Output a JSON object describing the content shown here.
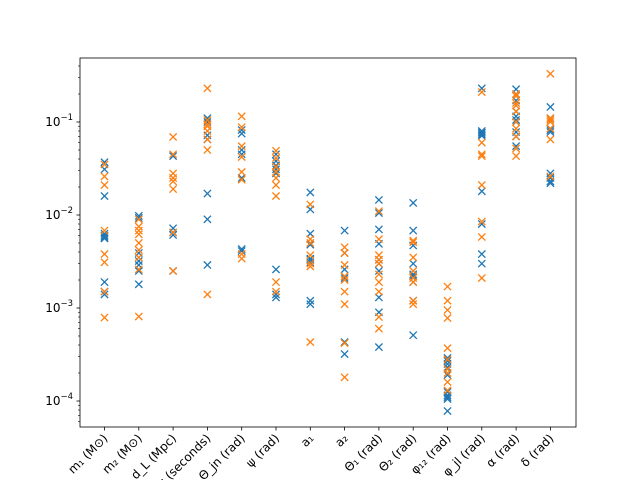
{
  "chart_data": {
    "type": "scatter",
    "title": "",
    "xlabel": "",
    "ylabel": "",
    "yscale": "log",
    "ylim": [
      5e-05,
      0.5
    ],
    "grid": false,
    "legend": "none",
    "categories": [
      "$m_1$ (M$_\\odot$)",
      "$m_2$ (M$_\\odot$)",
      "$d_L$ (Mpc)",
      "$t_c$ (seconds)",
      "$\\Theta_{jn}$ (rad)",
      "$\\psi$ (rad)",
      "$a_1$",
      "$a_2$",
      "$\\Theta_1$ (rad)",
      "$\\Theta_2$ (rad)",
      "$\\phi_{12}$ (rad)",
      "$\\phi_{jl}$ (rad)",
      "$\\alpha$ (rad)",
      "$\\delta$ (rad)"
    ],
    "category_labels_display": [
      "m₁ (M⊙)",
      "m₂ (M⊙)",
      "d_L (Mpc)",
      "t_c (seconds)",
      "Θ_jn (rad)",
      "ψ (rad)",
      "a₁",
      "a₂",
      "Θ₁ (rad)",
      "Θ₂ (rad)",
      "φ₁₂ (rad)",
      "φ_jl (rad)",
      "α (rad)",
      "δ (rad)"
    ],
    "y_ticks": [
      {
        "value": 0.0001,
        "mantissa": "10",
        "exp": "−4"
      },
      {
        "value": 0.001,
        "mantissa": "10",
        "exp": "−3"
      },
      {
        "value": 0.01,
        "mantissa": "10",
        "exp": "−2"
      },
      {
        "value": 0.1,
        "mantissa": "10",
        "exp": "−1"
      }
    ],
    "series": [
      {
        "color": "#1f77b4",
        "values": [
          [
            0.037,
            0.031,
            0.016,
            0.0063,
            0.006,
            0.0058,
            0.0056,
            0.0019,
            0.0015,
            0.0014
          ],
          [
            0.0098,
            0.0093,
            0.0039,
            0.0032,
            0.0029,
            0.0025,
            0.0018
          ],
          [
            0.043,
            0.0072,
            0.0065,
            0.0061,
            0.0025
          ],
          [
            0.11,
            0.1,
            0.072,
            0.065,
            0.017,
            0.009,
            0.0029
          ],
          [
            0.082,
            0.075,
            0.05,
            0.045,
            0.025,
            0.0043,
            0.0041
          ],
          [
            0.045,
            0.038,
            0.034,
            0.031,
            0.028,
            0.0026,
            0.0014,
            0.0013
          ],
          [
            0.0175,
            0.0115,
            0.0063,
            0.0048,
            0.0034,
            0.0033,
            0.0031,
            0.0012,
            0.0011
          ],
          [
            0.0068,
            0.0039,
            0.0026,
            0.0021,
            0.00043,
            0.00032
          ],
          [
            0.0145,
            0.0105,
            0.007,
            0.0049,
            0.0033,
            0.003,
            0.0025,
            0.0013,
            0.0009,
            0.00038
          ],
          [
            0.0135,
            0.0068,
            0.0047,
            0.003,
            0.0023,
            0.0022,
            0.0019,
            0.0012,
            0.00051
          ],
          [
            0.00029,
            0.00027,
            0.00025,
            0.00023,
            0.00019,
            0.000125,
            0.000115,
            0.00011,
            0.000105,
            7.8e-05
          ],
          [
            0.23,
            0.08,
            0.077,
            0.074,
            0.071,
            0.018,
            0.008,
            0.0038,
            0.003
          ],
          [
            0.225,
            0.2,
            0.17,
            0.13,
            0.115,
            0.105,
            0.1,
            0.078,
            0.07,
            0.055
          ],
          [
            0.145,
            0.11,
            0.085,
            0.082,
            0.078,
            0.028,
            0.025,
            0.023,
            0.022
          ]
        ]
      },
      {
        "color": "#ff7f0e",
        "values": [
          [
            0.035,
            0.026,
            0.021,
            0.0068,
            0.0038,
            0.0031,
            0.0015,
            0.00079
          ],
          [
            0.009,
            0.0075,
            0.0068,
            0.0062,
            0.005,
            0.0042,
            0.0035,
            0.0026,
            0.00081
          ],
          [
            0.069,
            0.045,
            0.028,
            0.025,
            0.023,
            0.019,
            0.0065,
            0.0025
          ],
          [
            0.23,
            0.105,
            0.095,
            0.09,
            0.08,
            0.065,
            0.05,
            0.0014
          ],
          [
            0.115,
            0.088,
            0.055,
            0.042,
            0.029,
            0.024,
            0.0038,
            0.0034
          ],
          [
            0.049,
            0.041,
            0.033,
            0.029,
            0.025,
            0.021,
            0.016,
            0.0019,
            0.0015
          ],
          [
            0.013,
            0.0055,
            0.005,
            0.0037,
            0.003,
            0.0028,
            0.00043
          ],
          [
            0.0045,
            0.0039,
            0.0029,
            0.0022,
            0.002,
            0.0015,
            0.0011,
            0.00042,
            0.00018
          ],
          [
            0.011,
            0.0055,
            0.0037,
            0.0033,
            0.003,
            0.0023,
            0.0019,
            0.0015,
            0.0008,
            0.0006
          ],
          [
            0.0053,
            0.0051,
            0.0035,
            0.0025,
            0.0021,
            0.0019,
            0.0012,
            0.0011
          ],
          [
            0.0017,
            0.0012,
            0.00095,
            0.00078,
            0.00037,
            0.00028,
            0.00022,
            0.0002,
            0.00016,
            0.00013
          ],
          [
            0.21,
            0.06,
            0.045,
            0.043,
            0.021,
            0.0085,
            0.0058,
            0.0021
          ],
          [
            0.2,
            0.19,
            0.16,
            0.15,
            0.13,
            0.1,
            0.085,
            0.07,
            0.052,
            0.043
          ],
          [
            0.33,
            0.11,
            0.105,
            0.1,
            0.085,
            0.065,
            0.026
          ]
        ]
      }
    ]
  }
}
